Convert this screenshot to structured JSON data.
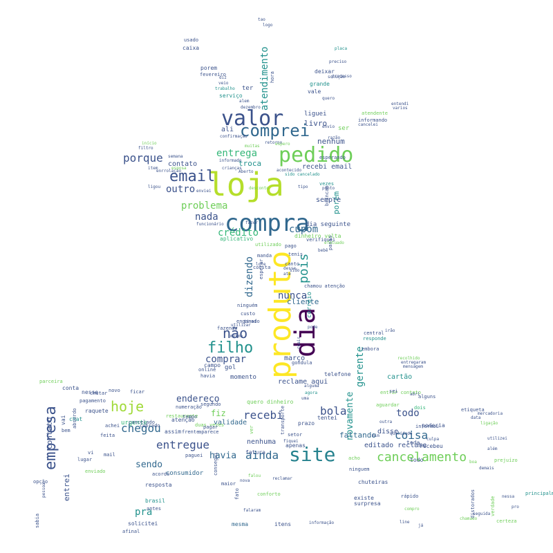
{
  "palette": {
    "purple": "#440154",
    "indigo": "#414487",
    "blue": "#2a788e",
    "teal": "#22a884",
    "green": "#7ad151",
    "yellow": "#fde725"
  },
  "words": [
    {
      "t": "loja",
      "c": "#b5de2b"
    },
    {
      "t": "produto",
      "c": "#fde725"
    },
    {
      "t": "dia",
      "c": "#440154"
    },
    {
      "t": "compra",
      "c": "#31688e"
    },
    {
      "t": "pedido",
      "c": "#6ece58"
    },
    {
      "t": "valor",
      "c": "#3b528b"
    },
    {
      "t": "site",
      "c": "#26828e"
    },
    {
      "t": "comprei",
      "c": "#31688e"
    },
    {
      "t": "email",
      "c": "#3b528b"
    },
    {
      "t": "empresa",
      "c": "#3b528b"
    },
    {
      "t": "filho",
      "c": "#21918c"
    },
    {
      "t": "não",
      "c": "#3b528b"
    },
    {
      "t": "hoje",
      "c": "#a0da39"
    },
    {
      "t": "cancelamento",
      "c": "#6ece58"
    },
    {
      "t": "pois",
      "c": "#21918c"
    },
    {
      "t": "entregue",
      "c": "#3b528b"
    },
    {
      "t": "chegou",
      "c": "#31688e"
    },
    {
      "t": "ainda",
      "c": "#31688e"
    },
    {
      "t": "porque",
      "c": "#3b528b"
    },
    {
      "t": "entrega",
      "c": "#35b779"
    },
    {
      "t": "problema",
      "c": "#6ece58"
    },
    {
      "t": "bola",
      "c": "#3b528b"
    },
    {
      "t": "recebi",
      "c": "#3b528b"
    },
    {
      "t": "coisa",
      "c": "#31688e"
    },
    {
      "t": "todo",
      "c": "#3b528b"
    },
    {
      "t": "comprar",
      "c": "#3b528b"
    },
    {
      "t": "cupom",
      "c": "#31688e"
    },
    {
      "t": "crédito",
      "c": "#35b779"
    },
    {
      "t": "nada",
      "c": "#3b528b"
    },
    {
      "t": "outro",
      "c": "#3b528b"
    },
    {
      "t": "dizendo",
      "c": "#31688e"
    },
    {
      "t": "nunca",
      "c": "#3b528b"
    },
    {
      "t": "gerente",
      "c": "#21918c"
    },
    {
      "t": "novamente",
      "c": "#21918c"
    },
    {
      "t": "endereço",
      "c": "#3b528b"
    },
    {
      "t": "havia",
      "c": "#31688e"
    },
    {
      "t": "sendo",
      "c": "#31688e"
    },
    {
      "t": "fiz",
      "c": "#6ece58"
    },
    {
      "t": "pra",
      "c": "#21918c"
    },
    {
      "t": "atendimento",
      "c": "#21918c"
    },
    {
      "t": "livro",
      "c": "#3b528b"
    },
    {
      "t": "nenhum",
      "c": "#3b528b"
    },
    {
      "t": "troca",
      "c": "#21918c"
    },
    {
      "t": "contato",
      "c": "#3b528b"
    },
    {
      "t": "porém",
      "c": "#21918c"
    },
    {
      "t": "sempre",
      "c": "#3b528b"
    },
    {
      "t": "recebi email",
      "c": "#3b528b"
    },
    {
      "t": "dia seguinte",
      "c": "#3b528b"
    },
    {
      "t": "faltando",
      "c": "#31688e"
    },
    {
      "t": "editado reclame",
      "c": "#3b528b"
    },
    {
      "t": "disse",
      "c": "#3b528b"
    },
    {
      "t": "cartão",
      "c": "#21918c"
    },
    {
      "t": "momento",
      "c": "#3b528b"
    },
    {
      "t": "reclame aqui",
      "c": "#3b528b"
    },
    {
      "t": "consumidor",
      "c": "#31688e"
    },
    {
      "t": "urgente",
      "c": "#35b779"
    },
    {
      "t": "validade",
      "c": "#31688e"
    },
    {
      "t": "nenhuma",
      "c": "#3b528b"
    },
    {
      "t": "entrei",
      "c": "#3b528b"
    },
    {
      "t": "contato",
      "c": "#3b528b"
    },
    {
      "t": "cliente",
      "c": "#31688e"
    },
    {
      "t": "março",
      "c": "#3b528b"
    },
    {
      "t": "ali",
      "c": "#3b528b"
    },
    {
      "t": "ser",
      "c": "#6ece58"
    },
    {
      "t": "gol",
      "c": "#3b528b"
    },
    {
      "t": "liguei",
      "c": "#3b528b"
    },
    {
      "t": "ter",
      "c": "#3b528b"
    },
    {
      "t": "aplicativo",
      "c": "#35b779"
    },
    {
      "t": "dinheiro volta",
      "c": "#6ece58"
    },
    {
      "t": "correio",
      "c": "#21918c"
    },
    {
      "t": "telefone",
      "c": "#3b528b"
    },
    {
      "t": "raquete",
      "c": "#3b528b"
    },
    {
      "t": "conta",
      "c": "#3b528b"
    },
    {
      "t": "nesse",
      "c": "#3b528b"
    },
    {
      "t": "chat",
      "c": "#21918c"
    },
    {
      "t": "resposta",
      "c": "#3b528b"
    },
    {
      "t": "brasil",
      "c": "#21918c"
    },
    {
      "t": "solicitei",
      "c": "#3b528b"
    },
    {
      "t": "mesma",
      "c": "#31688e"
    },
    {
      "t": "itens",
      "c": "#3b528b"
    },
    {
      "t": "todo",
      "c": "#3b528b"
    },
    {
      "t": "toda",
      "c": "#3b528b"
    },
    {
      "t": "recebeu",
      "c": "#3b528b"
    },
    {
      "t": "poderia",
      "c": "#3b528b"
    },
    {
      "t": "chuteiras",
      "c": "#3b528b"
    },
    {
      "t": "surpresa",
      "c": "#3b528b"
    },
    {
      "t": "existe",
      "c": "#3b528b"
    },
    {
      "t": "vale",
      "c": "#3b528b"
    },
    {
      "t": "grande",
      "c": "#21918c"
    },
    {
      "t": "deixar",
      "c": "#3b528b"
    },
    {
      "t": "informando",
      "c": "#3b528b"
    },
    {
      "t": "atendente",
      "c": "#6ece58"
    },
    {
      "t": "serviço",
      "c": "#21918c"
    },
    {
      "t": "porem",
      "c": "#3b528b"
    },
    {
      "t": "caixa",
      "c": "#3b528b"
    },
    {
      "t": "usado",
      "c": "#3b528b"
    },
    {
      "t": "fevereiro",
      "c": "#3b528b"
    },
    {
      "t": "esperando",
      "c": "#3b528b"
    },
    {
      "t": "embora",
      "c": "#3b528b"
    },
    {
      "t": "central",
      "c": "#3b528b"
    },
    {
      "t": "responde",
      "c": "#21918c"
    },
    {
      "t": "segundo",
      "c": "#3b528b"
    },
    {
      "t": "quero dinheiro",
      "c": "#6ece58"
    },
    {
      "t": "tentei",
      "c": "#3b528b"
    },
    {
      "t": "fatura",
      "c": "#3b528b"
    },
    {
      "t": "apenas",
      "c": "#3b528b"
    },
    {
      "t": "prazo",
      "c": "#3b528b"
    },
    {
      "t": "gondula",
      "c": "#3b528b"
    },
    {
      "t": "aparece",
      "c": "#3b528b"
    },
    {
      "t": "pagamento",
      "c": "#3b528b"
    },
    {
      "t": "assim",
      "c": "#3b528b"
    },
    {
      "t": "dois",
      "c": "#35b779"
    },
    {
      "t": "chamou atenção",
      "c": "#3b528b"
    },
    {
      "t": "consta",
      "c": "#3b528b"
    },
    {
      "t": "custo",
      "c": "#3b528b"
    },
    {
      "t": "enganado",
      "c": "#3b528b"
    },
    {
      "t": "fazendo",
      "c": "#3b528b"
    },
    {
      "t": "ninguém",
      "c": "#3b528b"
    },
    {
      "t": "esperar",
      "c": "#3b528b"
    },
    {
      "t": "tenis",
      "c": "#3b528b"
    },
    {
      "t": "canto",
      "c": "#3b528b"
    },
    {
      "t": "pago",
      "c": "#3b528b"
    },
    {
      "t": "verifiquei",
      "c": "#3b528b"
    },
    {
      "t": "fazer",
      "c": "#3b528b"
    },
    {
      "t": "funcionário",
      "c": "#3b528b"
    },
    {
      "t": "enviei",
      "c": "#3b528b"
    },
    {
      "t": "desconto",
      "c": "#6ece58"
    },
    {
      "t": "tipo",
      "c": "#3b528b"
    },
    {
      "t": "vezes",
      "c": "#21918c"
    },
    {
      "t": "ponto",
      "c": "#3b528b"
    },
    {
      "t": "acontecido",
      "c": "#3b528b"
    },
    {
      "t": "informado",
      "c": "#3b528b"
    },
    {
      "t": "crianças",
      "c": "#3b528b"
    },
    {
      "t": "Aberto",
      "c": "#3b528b"
    },
    {
      "t": "retorno",
      "c": "#3b528b"
    },
    {
      "t": "espero",
      "c": "#6ece58"
    },
    {
      "t": "muitas",
      "c": "#6ece58"
    },
    {
      "t": "confirmação",
      "c": "#3b528b"
    },
    {
      "t": "alem",
      "c": "#3b528b"
    },
    {
      "t": "dezembro",
      "c": "#3b528b"
    },
    {
      "t": "quero",
      "c": "#3b528b"
    },
    {
      "t": "entendi",
      "c": "#3b528b"
    },
    {
      "t": "varios",
      "c": "#3b528b"
    },
    {
      "t": "cancelei",
      "c": "#3b528b"
    },
    {
      "t": "envio",
      "c": "#3b528b"
    },
    {
      "t": "razão",
      "c": "#3b528b"
    },
    {
      "t": "semana",
      "c": "#3b528b"
    },
    {
      "t": "item",
      "c": "#3b528b"
    },
    {
      "t": "enrrolação",
      "c": "#3b528b"
    },
    {
      "t": "ligou",
      "c": "#3b528b"
    },
    {
      "t": "filtro",
      "c": "#3b528b"
    },
    {
      "t": "início",
      "c": "#6ece58"
    },
    {
      "t": "esposa",
      "c": "#6ece58"
    },
    {
      "t": "diz",
      "c": "#3b528b"
    },
    {
      "t": "veio",
      "c": "#3b528b"
    },
    {
      "t": "trabalho",
      "c": "#21918c"
    },
    {
      "t": "processo",
      "c": "#3b528b"
    },
    {
      "t": "solução",
      "c": "#3b528b"
    },
    {
      "t": "preciso",
      "c": "#3b528b"
    },
    {
      "t": "placa",
      "c": "#21918c"
    },
    {
      "t": "tao",
      "c": "#3b528b"
    },
    {
      "t": "logo",
      "c": "#3b528b"
    },
    {
      "t": "novo",
      "c": "#3b528b"
    },
    {
      "t": "ficar",
      "c": "#3b528b"
    },
    {
      "t": "parceira",
      "c": "#6ece58"
    },
    {
      "t": "chutar",
      "c": "#3b528b"
    },
    {
      "t": "vai",
      "c": "#3b528b"
    },
    {
      "t": "absurdo",
      "c": "#3b528b"
    },
    {
      "t": "bem",
      "c": "#3b528b"
    },
    {
      "t": "feita",
      "c": "#3b528b"
    },
    {
      "t": "mail",
      "c": "#3b528b"
    },
    {
      "t": "lugar",
      "c": "#3b528b"
    },
    {
      "t": "enviado",
      "c": "#6ece58"
    },
    {
      "t": "cancelado",
      "c": "#3b528b"
    },
    {
      "t": "cobrado",
      "c": "#3b528b"
    },
    {
      "t": "achei",
      "c": "#3b528b"
    },
    {
      "t": "vi",
      "c": "#3b528b"
    },
    {
      "t": "acordo",
      "c": "#3b528b"
    },
    {
      "t": "opção",
      "c": "#3b528b"
    },
    {
      "t": "pessoa",
      "c": "#3b528b"
    },
    {
      "t": "sabia",
      "c": "#3b528b"
    },
    {
      "t": "antes",
      "c": "#3b528b"
    },
    {
      "t": "afinal",
      "c": "#3b528b"
    },
    {
      "t": "atenção",
      "c": "#3b528b"
    },
    {
      "t": "numeração",
      "c": "#3b528b"
    },
    {
      "t": "restaurante",
      "c": "#6ece58"
    },
    {
      "t": "tempo",
      "c": "#3b528b"
    },
    {
      "t": "online",
      "c": "#3b528b"
    },
    {
      "t": "havia",
      "c": "#3b528b"
    },
    {
      "t": "campo",
      "c": "#3b528b"
    },
    {
      "t": "aguardar",
      "c": "#6ece58"
    },
    {
      "t": "entrar contato",
      "c": "#6ece58"
    },
    {
      "t": "informou",
      "c": "#3b528b"
    },
    {
      "t": "sei",
      "c": "#3b528b"
    },
    {
      "t": "abri",
      "c": "#3b528b"
    },
    {
      "t": "alguns",
      "c": "#3b528b"
    },
    {
      "t": "outra",
      "c": "#3b528b"
    },
    {
      "t": "mim",
      "c": "#3b528b"
    },
    {
      "t": "qualidade",
      "c": "#3b528b"
    },
    {
      "t": "culpa",
      "c": "#3b528b"
    },
    {
      "t": "etiqueta",
      "c": "#3b528b"
    },
    {
      "t": "data",
      "c": "#3b528b"
    },
    {
      "t": "mercadoria",
      "c": "#3b528b"
    },
    {
      "t": "ligação",
      "c": "#6ece58"
    },
    {
      "t": "utilizei",
      "c": "#3b528b"
    },
    {
      "t": "além",
      "c": "#3b528b"
    },
    {
      "t": "prejuízo",
      "c": "#6ece58"
    },
    {
      "t": "demais",
      "c": "#3b528b"
    },
    {
      "t": "boa",
      "c": "#6ece58"
    },
    {
      "t": "acho",
      "c": "#6ece58"
    },
    {
      "t": "ninguem",
      "c": "#3b528b"
    },
    {
      "t": "setor",
      "c": "#3b528b"
    },
    {
      "t": "fiquei",
      "c": "#3b528b"
    },
    {
      "t": "falou",
      "c": "#6ece58"
    },
    {
      "t": "conforto",
      "c": "#6ece58"
    },
    {
      "t": "nova",
      "c": "#3b528b"
    },
    {
      "t": "reclamar",
      "c": "#3b528b"
    },
    {
      "t": "rápido",
      "c": "#3b528b"
    },
    {
      "t": "compro",
      "c": "#6ece58"
    },
    {
      "t": "chamado",
      "c": "#6ece58"
    },
    {
      "t": "seguida",
      "c": "#3b528b"
    },
    {
      "t": "nessa",
      "c": "#3b528b"
    },
    {
      "t": "pro",
      "c": "#3b528b"
    },
    {
      "t": "line",
      "c": "#3b528b"
    },
    {
      "t": "já",
      "c": "#3b528b"
    },
    {
      "t": "falaram",
      "c": "#3b528b"
    },
    {
      "t": "informação",
      "c": "#3b528b"
    },
    {
      "t": "maior",
      "c": "#3b528b"
    },
    {
      "t": "fato",
      "c": "#3b528b"
    },
    {
      "t": "consegui",
      "c": "#3b528b"
    },
    {
      "t": "ver",
      "c": "#6ece58"
    },
    {
      "t": "frente",
      "c": "#3b528b"
    },
    {
      "t": "duas vezes",
      "c": "#6ece58"
    },
    {
      "t": "pagar",
      "c": "#3b528b"
    },
    {
      "t": "paguei",
      "c": "#3b528b"
    },
    {
      "t": "transporte",
      "c": "#3b528b"
    },
    {
      "t": "distorados",
      "c": "#3b528b"
    },
    {
      "t": "verdade",
      "c": "#6ece58"
    },
    {
      "t": "certeza",
      "c": "#6ece58"
    },
    {
      "t": "principalmente",
      "c": "#21918c"
    },
    {
      "t": "utilizado",
      "c": "#6ece58"
    },
    {
      "t": "manda",
      "c": "#3b528b"
    },
    {
      "t": "lote",
      "c": "#3b528b"
    },
    {
      "t": "desse",
      "c": "#3b528b"
    },
    {
      "t": "sido",
      "c": "#3b528b"
    },
    {
      "t": "ate",
      "c": "#3b528b"
    },
    {
      "t": "passa",
      "c": "#3b528b"
    },
    {
      "t": "efetuado",
      "c": "#6ece58"
    },
    {
      "t": "bebê",
      "c": "#3b528b"
    },
    {
      "t": "irão",
      "c": "#3b528b"
    },
    {
      "t": "recolhido",
      "c": "#6ece58"
    },
    {
      "t": "entregaram",
      "c": "#3b528b"
    },
    {
      "t": "mensagem",
      "c": "#3b528b"
    },
    {
      "t": "hora",
      "c": "#3b528b"
    },
    {
      "t": "brincam",
      "c": "#3b528b"
    },
    {
      "t": "sido cancelado",
      "c": "#21918c"
    },
    {
      "t": "agora",
      "c": "#21918c"
    },
    {
      "t": "uma",
      "c": "#3b528b"
    },
    {
      "t": "alguma",
      "c": "#3b528b"
    },
    {
      "t": "tirei",
      "c": "#3b528b"
    },
    {
      "t": "mesmo",
      "c": "#3b528b"
    },
    {
      "t": "utilizar",
      "c": "#3b528b"
    },
    {
      "t": "pode",
      "c": "#3b528b"
    },
    {
      "t": "reais",
      "c": "#3b528b"
    },
    {
      "t": "quanto",
      "c": "#3b528b"
    },
    {
      "t": "seguido",
      "c": "#3b528b"
    }
  ]
}
